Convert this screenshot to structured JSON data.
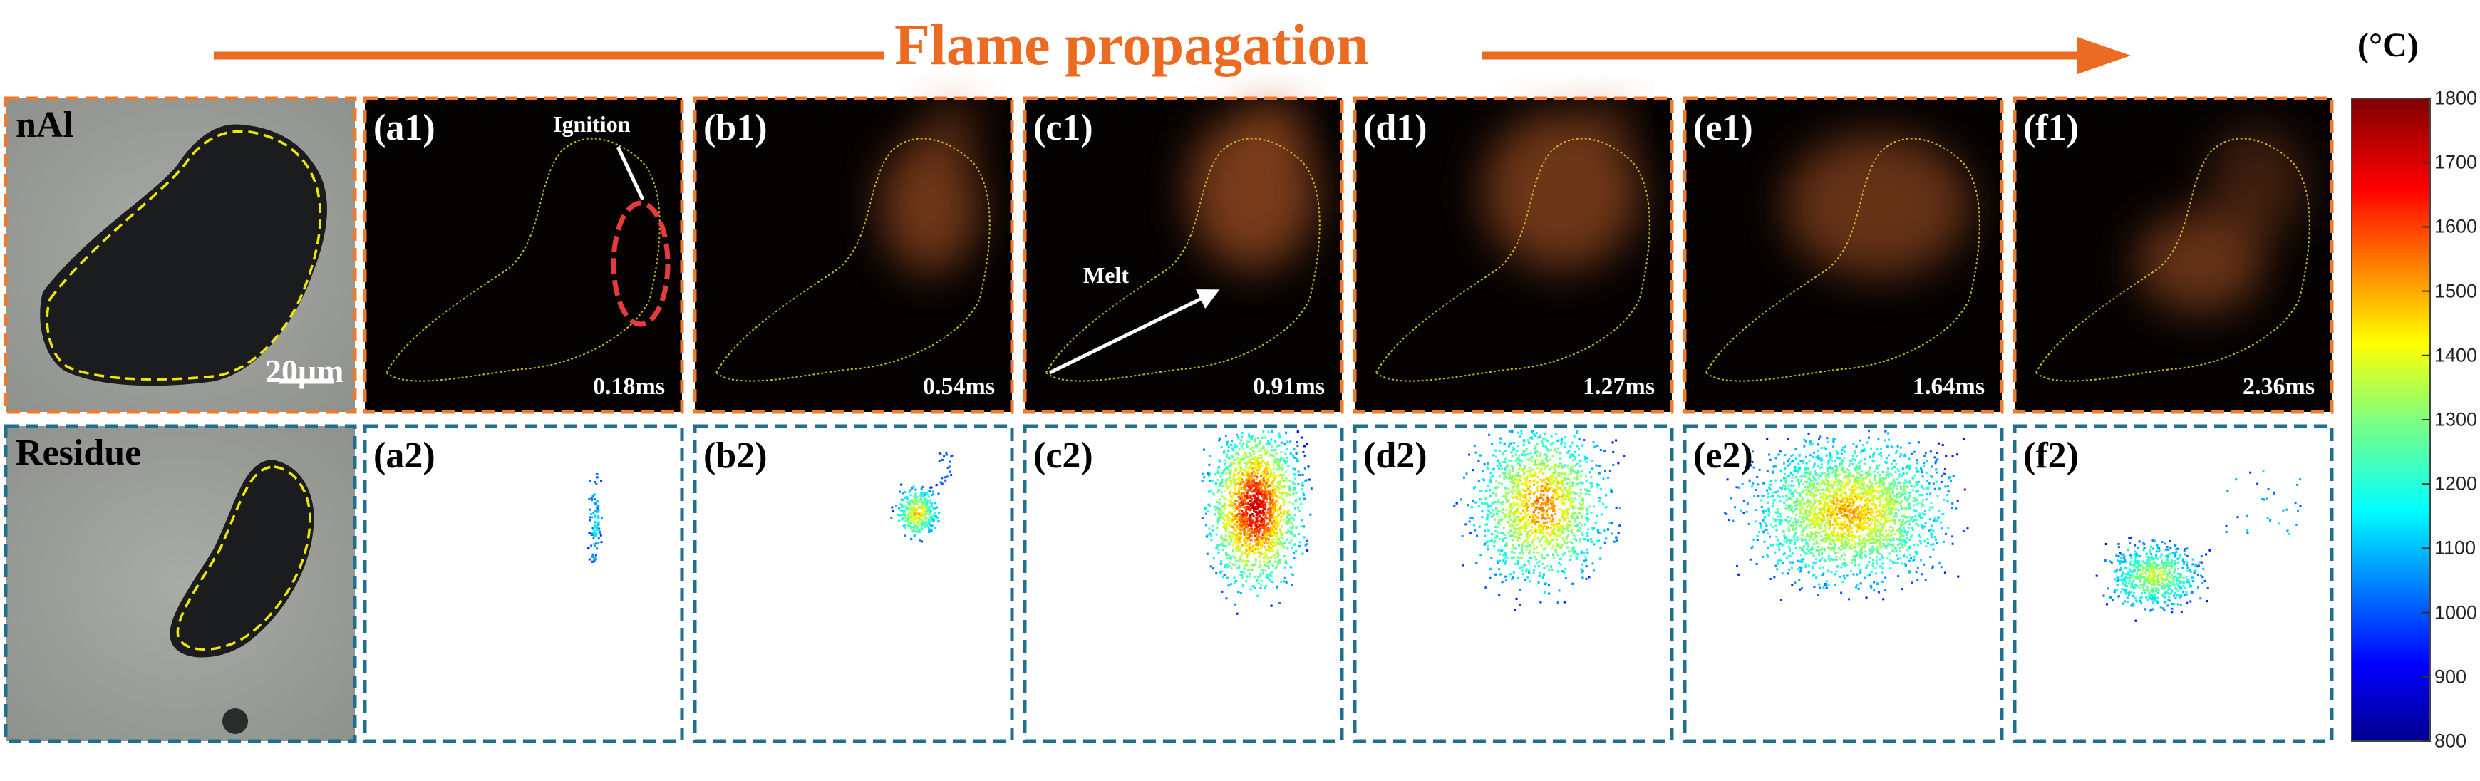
{
  "title": "Flame propagation",
  "colorbar": {
    "unit": "(°C)",
    "ticks": [
      "1800",
      "1700",
      "1600",
      "1500",
      "1400",
      "1300",
      "1200",
      "1100",
      "1000",
      "900",
      "800"
    ],
    "min": 800,
    "max": 1800
  },
  "rows": {
    "top": {
      "label": "nAl",
      "border_color": "#ee7a2e"
    },
    "bottom": {
      "label": "Residue",
      "border_color": "#1f6f8f"
    }
  },
  "scale_bar": "20μm",
  "annotations": {
    "ignition": "Ignition",
    "melt": "Melt"
  },
  "top_panels": [
    {
      "label": "(a1)",
      "time": "0.18ms"
    },
    {
      "label": "(b1)",
      "time": "0.54ms"
    },
    {
      "label": "(c1)",
      "time": "0.91ms"
    },
    {
      "label": "(d1)",
      "time": "1.27ms"
    },
    {
      "label": "(e1)",
      "time": "1.64ms"
    },
    {
      "label": "(f1)",
      "time": "2.36ms"
    }
  ],
  "bottom_panels": [
    {
      "label": "(a2)"
    },
    {
      "label": "(b2)"
    },
    {
      "label": "(c2)"
    },
    {
      "label": "(d2)"
    },
    {
      "label": "(e2)"
    },
    {
      "label": "(f2)"
    }
  ]
}
